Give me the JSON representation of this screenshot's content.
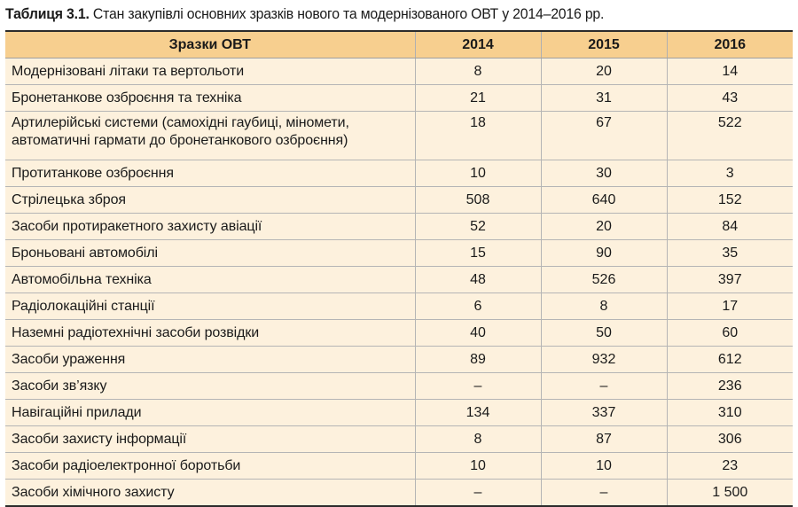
{
  "caption": {
    "label": "Таблиця 3.1.",
    "text": " Стан закупівлі основних зразків нового та модернізованого ОВТ у 2014–2016 рр."
  },
  "table": {
    "headers": [
      "Зразки ОВТ",
      "2014",
      "2015",
      "2016"
    ],
    "rows": [
      {
        "name": "Модернізовані літаки та вертольоти",
        "v2014": "8",
        "v2015": "20",
        "v2016": "14"
      },
      {
        "name": "Бронетанкове озброєння та техніка",
        "v2014": "21",
        "v2015": "31",
        "v2016": "43"
      },
      {
        "name": "Артилерійські системи (самохідні гаубиці, міномети, автоматичні гармати до бронетанкового озброєння)",
        "v2014": "18",
        "v2015": "67",
        "v2016": "522"
      },
      {
        "name": "Протитанкове озброєння",
        "v2014": "10",
        "v2015": "30",
        "v2016": "3"
      },
      {
        "name": "Стрілецька зброя",
        "v2014": "508",
        "v2015": "640",
        "v2016": "152"
      },
      {
        "name": "Засоби протиракетного захисту авіації",
        "v2014": "52",
        "v2015": "20",
        "v2016": "84"
      },
      {
        "name": "Броньовані автомобілі",
        "v2014": "15",
        "v2015": "90",
        "v2016": "35"
      },
      {
        "name": "Автомобільна техніка",
        "v2014": "48",
        "v2015": "526",
        "v2016": "397"
      },
      {
        "name": "Радіолокаційні станції",
        "v2014": "6",
        "v2015": "8",
        "v2016": "17"
      },
      {
        "name": "Наземні радіотехнічні засоби розвідки",
        "v2014": "40",
        "v2015": "50",
        "v2016": "60"
      },
      {
        "name": "Засоби ураження",
        "v2014": "89",
        "v2015": "932",
        "v2016": "612"
      },
      {
        "name": "Засоби зв’язку",
        "v2014": "–",
        "v2015": "–",
        "v2016": "236"
      },
      {
        "name": "Навігаційні прилади",
        "v2014": "134",
        "v2015": "337",
        "v2016": "310"
      },
      {
        "name": "Засоби захисту інформації",
        "v2014": "8",
        "v2015": "87",
        "v2016": "306"
      },
      {
        "name": "Засоби радіоелектронної боротьби",
        "v2014": "10",
        "v2015": "10",
        "v2016": "23"
      },
      {
        "name": "Засоби хімічного захисту",
        "v2014": "–",
        "v2015": "–",
        "v2016": "1 500"
      }
    ]
  },
  "colors": {
    "header_bg": "#f7cf8f",
    "row_bg": "#fdf1dd"
  }
}
